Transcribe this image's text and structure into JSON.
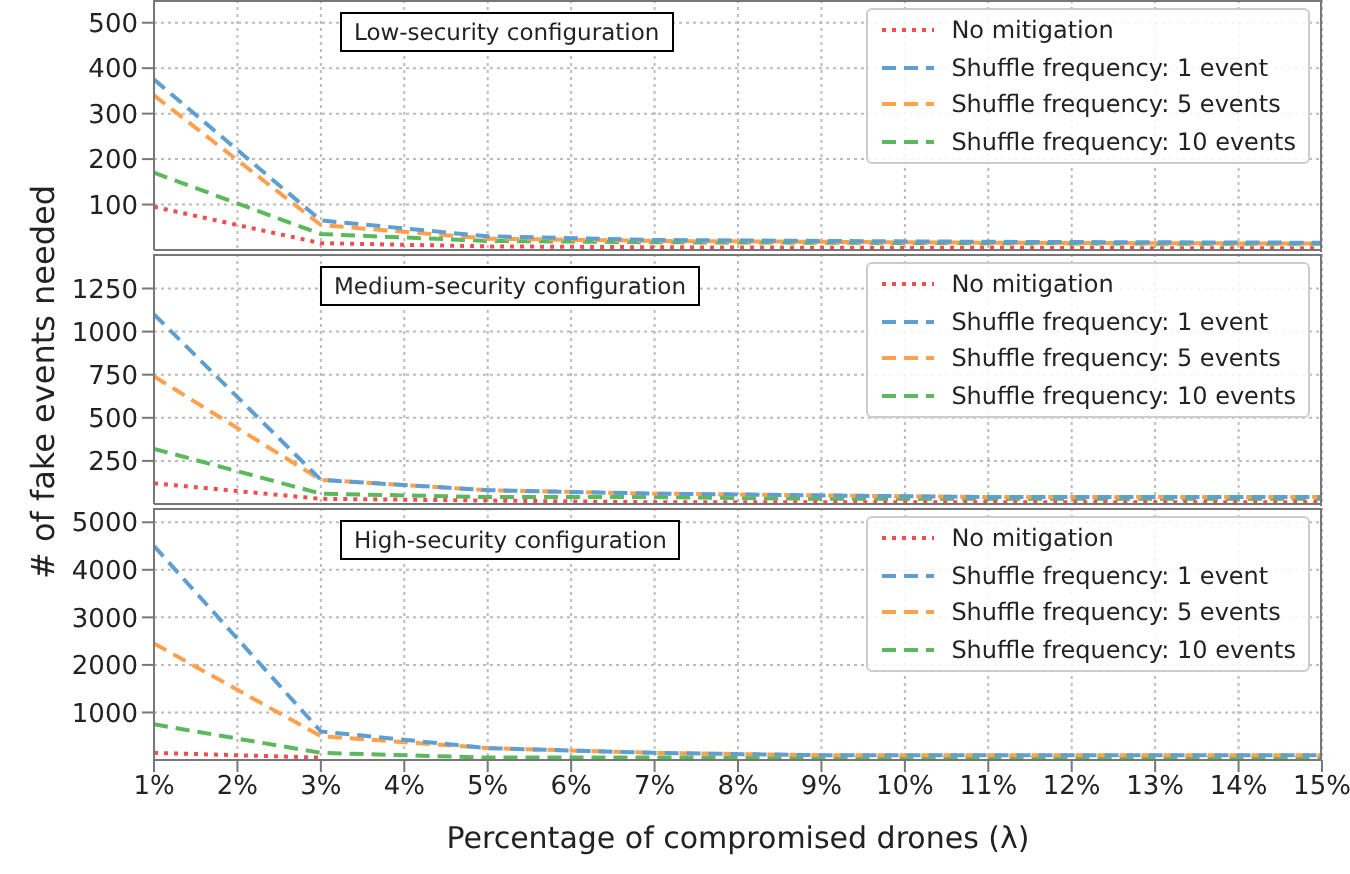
{
  "chart_data": [
    {
      "type": "line",
      "annotations": [
        "Low-security configuration"
      ],
      "x": [
        1,
        3,
        5,
        7,
        9,
        11,
        13,
        15
      ],
      "xlim": [
        1,
        15
      ],
      "xticks": [
        {
          "value": 1,
          "label": null
        },
        {
          "value": 2,
          "label": null
        },
        {
          "value": 3,
          "label": null
        },
        {
          "value": 4,
          "label": null
        },
        {
          "value": 5,
          "label": null
        },
        {
          "value": 6,
          "label": null
        },
        {
          "value": 7,
          "label": null
        },
        {
          "value": 8,
          "label": null
        },
        {
          "value": 9,
          "label": null
        },
        {
          "value": 10,
          "label": null
        },
        {
          "value": 11,
          "label": null
        },
        {
          "value": 12,
          "label": null
        },
        {
          "value": 13,
          "label": null
        },
        {
          "value": 14,
          "label": null
        },
        {
          "value": 15,
          "label": null
        }
      ],
      "ylim": [
        0,
        550
      ],
      "yticks": [
        100,
        200,
        300,
        400,
        500
      ],
      "tick_labels": "y",
      "grid": true,
      "legend": "top right",
      "series": [
        {
          "name": "No mitigation",
          "color": "#f14d4d",
          "line_style": "dotted",
          "values": [
            95,
            15,
            8,
            6,
            5,
            5,
            4,
            4
          ]
        },
        {
          "name": "Shuffle frequency: 1 event",
          "color": "#5f9ed1",
          "line_style": "dashed",
          "values": [
            375,
            65,
            30,
            22,
            20,
            18,
            17,
            16
          ]
        },
        {
          "name": "Shuffle frequency: 5 events",
          "color": "#ffa04d",
          "line_style": "dashed",
          "values": [
            340,
            55,
            25,
            20,
            18,
            16,
            15,
            14
          ]
        },
        {
          "name": "Shuffle frequency: 10 events",
          "color": "#5cb85c",
          "line_style": "dashed",
          "values": [
            170,
            35,
            20,
            17,
            16,
            15,
            14,
            14
          ]
        }
      ]
    },
    {
      "type": "line",
      "annotations": [
        "Medium-security configuration"
      ],
      "ylabel": "# of fake events needed",
      "x": [
        1,
        3,
        5,
        7,
        9,
        11,
        13,
        15
      ],
      "xlim": [
        1,
        15
      ],
      "xticks": [
        {
          "value": 1,
          "label": null
        },
        {
          "value": 2,
          "label": null
        },
        {
          "value": 3,
          "label": null
        },
        {
          "value": 4,
          "label": null
        },
        {
          "value": 5,
          "label": null
        },
        {
          "value": 6,
          "label": null
        },
        {
          "value": 7,
          "label": null
        },
        {
          "value": 8,
          "label": null
        },
        {
          "value": 9,
          "label": null
        },
        {
          "value": 10,
          "label": null
        },
        {
          "value": 11,
          "label": null
        },
        {
          "value": 12,
          "label": null
        },
        {
          "value": 13,
          "label": null
        },
        {
          "value": 14,
          "label": null
        },
        {
          "value": 15,
          "label": null
        }
      ],
      "ylim": [
        0,
        1450
      ],
      "yticks": [
        250,
        500,
        750,
        1000,
        1250
      ],
      "tick_labels": "y",
      "grid": true,
      "legend": "top right",
      "series": [
        {
          "name": "No mitigation",
          "color": "#f14d4d",
          "line_style": "dotted",
          "values": [
            120,
            30,
            20,
            10,
            10,
            10,
            10,
            10
          ]
        },
        {
          "name": "Shuffle frequency: 1 event",
          "color": "#5f9ed1",
          "line_style": "dashed",
          "values": [
            1100,
            140,
            80,
            60,
            50,
            40,
            40,
            40
          ]
        },
        {
          "name": "Shuffle frequency: 5 events",
          "color": "#ffa04d",
          "line_style": "dashed",
          "values": [
            740,
            140,
            80,
            60,
            50,
            40,
            40,
            40
          ]
        },
        {
          "name": "Shuffle frequency: 10 events",
          "color": "#5cb85c",
          "line_style": "dashed",
          "values": [
            320,
            60,
            40,
            40,
            30,
            30,
            30,
            30
          ]
        }
      ]
    },
    {
      "type": "line",
      "annotations": [
        "High-security configuration"
      ],
      "xlabel": "Percentage of compromised drones (λ)",
      "x": [
        1,
        3,
        5,
        7,
        9,
        11,
        13,
        15
      ],
      "xlim": [
        1,
        15
      ],
      "xticks": [
        {
          "value": 1,
          "label": "1%"
        },
        {
          "value": 2,
          "label": "2%"
        },
        {
          "value": 3,
          "label": "3%"
        },
        {
          "value": 4,
          "label": "4%"
        },
        {
          "value": 5,
          "label": "5%"
        },
        {
          "value": 6,
          "label": "6%"
        },
        {
          "value": 7,
          "label": "7%"
        },
        {
          "value": 8,
          "label": "8%"
        },
        {
          "value": 9,
          "label": "9%"
        },
        {
          "value": 10,
          "label": "10%"
        },
        {
          "value": 11,
          "label": "11%"
        },
        {
          "value": 12,
          "label": "12%"
        },
        {
          "value": 13,
          "label": "13%"
        },
        {
          "value": 14,
          "label": "14%"
        },
        {
          "value": 15,
          "label": "15%"
        }
      ],
      "ylim": [
        0,
        5300
      ],
      "yticks": [
        1000,
        2000,
        3000,
        4000,
        5000
      ],
      "grid": true,
      "legend": "top right",
      "series": [
        {
          "name": "No mitigation",
          "color": "#f14d4d",
          "line_style": "dotted",
          "values": [
            150,
            50,
            null,
            null,
            null,
            null,
            null,
            null
          ]
        },
        {
          "name": "Shuffle frequency: 1 event",
          "color": "#5f9ed1",
          "line_style": "dashed",
          "values": [
            4500,
            600,
            250,
            150,
            100,
            100,
            100,
            100
          ]
        },
        {
          "name": "Shuffle frequency: 5 events",
          "color": "#ffa04d",
          "line_style": "dashed",
          "values": [
            2450,
            500,
            250,
            150,
            100,
            100,
            100,
            100
          ]
        },
        {
          "name": "Shuffle frequency: 10 events",
          "color": "#5cb85c",
          "line_style": "dashed",
          "values": [
            750,
            150,
            50,
            50,
            50,
            50,
            50,
            50
          ]
        }
      ]
    }
  ]
}
